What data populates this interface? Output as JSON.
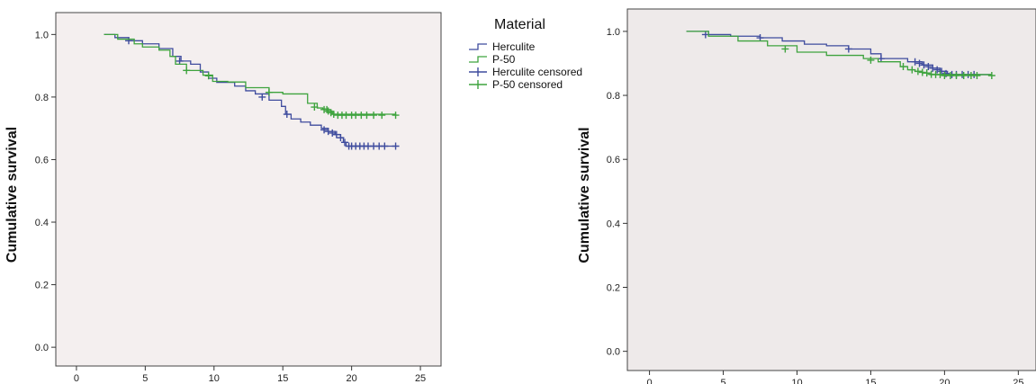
{
  "chart_data": [
    {
      "type": "line",
      "title": "",
      "xlabel": "",
      "ylabel": "Cumulative survival",
      "xlim": [
        -1.5,
        26.5
      ],
      "ylim": [
        -0.06,
        1.07
      ],
      "xticks": [
        0,
        5,
        10,
        15,
        20,
        25
      ],
      "yticks": [
        0.0,
        0.2,
        0.4,
        0.6,
        0.8,
        1.0
      ],
      "ytick_labels": [
        "0.0",
        "0.2",
        "0.4",
        "0.6",
        "0.8",
        "1.0"
      ],
      "plot_background": "#f4efef",
      "grid": false,
      "legend": {
        "title": "Material",
        "placement": "right",
        "entries": [
          {
            "label": "Herculite",
            "kind": "step",
            "color": "#3f4c9e"
          },
          {
            "label": "P-50",
            "kind": "step",
            "color": "#3ea33e"
          },
          {
            "label": "Herculite censored",
            "kind": "cross",
            "color": "#3f4c9e"
          },
          {
            "label": "P-50 censored",
            "kind": "cross",
            "color": "#3ea33e"
          }
        ]
      },
      "series": [
        {
          "name": "Herculite",
          "color": "#3f4c9e",
          "steps": [
            [
              2,
              1.0
            ],
            [
              2.8,
              0.99
            ],
            [
              3.8,
              0.98
            ],
            [
              4.8,
              0.97
            ],
            [
              6.0,
              0.955
            ],
            [
              7.0,
              0.93
            ],
            [
              7.6,
              0.915
            ],
            [
              8.3,
              0.905
            ],
            [
              9.0,
              0.88
            ],
            [
              9.6,
              0.86
            ],
            [
              10.2,
              0.847
            ],
            [
              11.5,
              0.835
            ],
            [
              12.3,
              0.82
            ],
            [
              13.0,
              0.81
            ],
            [
              14.0,
              0.79
            ],
            [
              14.9,
              0.77
            ],
            [
              15.2,
              0.745
            ],
            [
              15.6,
              0.73
            ],
            [
              16.3,
              0.72
            ],
            [
              17.0,
              0.71
            ],
            [
              17.8,
              0.7
            ],
            [
              18.3,
              0.69
            ],
            [
              18.8,
              0.68
            ],
            [
              19.2,
              0.67
            ],
            [
              19.4,
              0.655
            ],
            [
              19.6,
              0.643
            ],
            [
              23.2,
              0.643
            ]
          ],
          "censored": [
            [
              3.8,
              0.98
            ],
            [
              7.5,
              0.915
            ],
            [
              13.5,
              0.8
            ],
            [
              15.3,
              0.745
            ],
            [
              18.0,
              0.695
            ],
            [
              18.3,
              0.69
            ],
            [
              18.6,
              0.685
            ],
            [
              18.9,
              0.68
            ],
            [
              19.2,
              0.67
            ],
            [
              19.5,
              0.655
            ],
            [
              19.8,
              0.643
            ],
            [
              20.0,
              0.643
            ],
            [
              20.3,
              0.643
            ],
            [
              20.6,
              0.643
            ],
            [
              20.9,
              0.643
            ],
            [
              21.2,
              0.643
            ],
            [
              21.6,
              0.643
            ],
            [
              22.0,
              0.643
            ],
            [
              22.4,
              0.643
            ],
            [
              23.2,
              0.643
            ]
          ]
        },
        {
          "name": "P-50",
          "color": "#3ea33e",
          "steps": [
            [
              2,
              1.0
            ],
            [
              3.0,
              0.985
            ],
            [
              4.2,
              0.97
            ],
            [
              4.8,
              0.96
            ],
            [
              6.0,
              0.95
            ],
            [
              6.8,
              0.93
            ],
            [
              7.2,
              0.905
            ],
            [
              8.0,
              0.885
            ],
            [
              9.2,
              0.87
            ],
            [
              9.9,
              0.85
            ],
            [
              11.0,
              0.848
            ],
            [
              12.3,
              0.83
            ],
            [
              14.0,
              0.815
            ],
            [
              15.0,
              0.81
            ],
            [
              16.8,
              0.78
            ],
            [
              17.5,
              0.765
            ],
            [
              17.9,
              0.762
            ],
            [
              18.2,
              0.755
            ],
            [
              18.6,
              0.745
            ],
            [
              23.2,
              0.742
            ]
          ],
          "censored": [
            [
              8.0,
              0.885
            ],
            [
              9.6,
              0.868
            ],
            [
              14.0,
              0.815
            ],
            [
              17.3,
              0.768
            ],
            [
              18.0,
              0.76
            ],
            [
              18.2,
              0.76
            ],
            [
              18.3,
              0.755
            ],
            [
              18.5,
              0.75
            ],
            [
              18.7,
              0.745
            ],
            [
              19.0,
              0.742
            ],
            [
              19.3,
              0.742
            ],
            [
              19.6,
              0.742
            ],
            [
              20.0,
              0.742
            ],
            [
              20.3,
              0.742
            ],
            [
              20.7,
              0.742
            ],
            [
              21.1,
              0.742
            ],
            [
              21.6,
              0.742
            ],
            [
              22.2,
              0.742
            ],
            [
              23.2,
              0.742
            ]
          ]
        }
      ]
    },
    {
      "type": "line",
      "title": "",
      "xlabel": "",
      "ylabel": "Cumulative survival",
      "xlim": [
        -1.5,
        26.2
      ],
      "ylim": [
        -0.06,
        1.07
      ],
      "xticks": [
        0,
        5,
        10,
        15,
        20,
        25
      ],
      "yticks": [
        0.0,
        0.2,
        0.4,
        0.6,
        0.8,
        1.0
      ],
      "ytick_labels": [
        "0.0",
        "0.2",
        "0.4",
        "0.6",
        "0.8",
        "1.0"
      ],
      "plot_background": "#eeeaea",
      "grid": false,
      "series": [
        {
          "color": "#3f4c9e",
          "steps": [
            [
              2.5,
              1.0
            ],
            [
              4.0,
              0.99
            ],
            [
              5.5,
              0.985
            ],
            [
              7.5,
              0.98
            ],
            [
              9.0,
              0.97
            ],
            [
              10.5,
              0.96
            ],
            [
              12.0,
              0.955
            ],
            [
              13.5,
              0.945
            ],
            [
              15.0,
              0.93
            ],
            [
              15.7,
              0.915
            ],
            [
              17.5,
              0.905
            ],
            [
              18.5,
              0.895
            ],
            [
              19.2,
              0.885
            ],
            [
              19.7,
              0.875
            ],
            [
              20.2,
              0.865
            ],
            [
              23.2,
              0.865
            ]
          ],
          "censored": [
            [
              3.8,
              0.99
            ],
            [
              7.5,
              0.98
            ],
            [
              13.5,
              0.945
            ],
            [
              15.7,
              0.915
            ],
            [
              18.0,
              0.905
            ],
            [
              18.3,
              0.9
            ],
            [
              18.6,
              0.895
            ],
            [
              18.9,
              0.89
            ],
            [
              19.2,
              0.885
            ],
            [
              19.5,
              0.88
            ],
            [
              19.8,
              0.875
            ],
            [
              20.1,
              0.868
            ],
            [
              20.5,
              0.865
            ],
            [
              20.8,
              0.865
            ],
            [
              21.2,
              0.865
            ],
            [
              21.6,
              0.865
            ],
            [
              22.0,
              0.865
            ]
          ]
        },
        {
          "color": "#3ea33e",
          "steps": [
            [
              2.5,
              1.0
            ],
            [
              4.0,
              0.985
            ],
            [
              6.0,
              0.97
            ],
            [
              8.0,
              0.955
            ],
            [
              10.0,
              0.935
            ],
            [
              12.0,
              0.925
            ],
            [
              14.5,
              0.915
            ],
            [
              15.5,
              0.905
            ],
            [
              17.0,
              0.89
            ],
            [
              17.5,
              0.88
            ],
            [
              18.0,
              0.875
            ],
            [
              18.5,
              0.87
            ],
            [
              19.0,
              0.865
            ],
            [
              23.2,
              0.862
            ]
          ],
          "censored": [
            [
              9.2,
              0.945
            ],
            [
              15.0,
              0.91
            ],
            [
              17.2,
              0.89
            ],
            [
              17.8,
              0.88
            ],
            [
              18.2,
              0.875
            ],
            [
              18.5,
              0.872
            ],
            [
              18.8,
              0.87
            ],
            [
              19.1,
              0.866
            ],
            [
              19.4,
              0.865
            ],
            [
              19.7,
              0.865
            ],
            [
              20.0,
              0.862
            ],
            [
              20.4,
              0.862
            ],
            [
              20.8,
              0.862
            ],
            [
              21.3,
              0.862
            ],
            [
              21.8,
              0.862
            ],
            [
              22.2,
              0.862
            ],
            [
              23.2,
              0.862
            ]
          ]
        }
      ]
    }
  ]
}
